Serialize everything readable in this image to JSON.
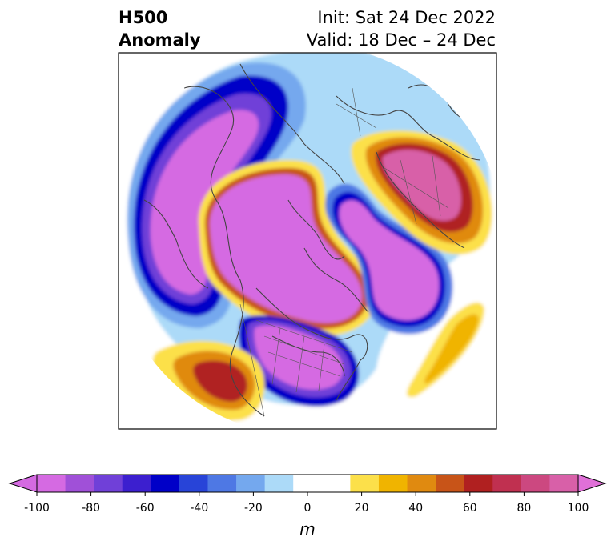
{
  "title": {
    "left_line1": "H500",
    "left_line2": "Anomaly",
    "right_line1": "Init: Sat 24 Dec 2022",
    "right_line2": "Valid: 18 Dec – 24 Dec"
  },
  "colorbar": {
    "unit_label": "m",
    "ticks": [
      "-100",
      "-80",
      "-60",
      "-40",
      "-20",
      "0",
      "20",
      "40",
      "60",
      "80",
      "100"
    ],
    "colors": [
      "#d56ae2",
      "#a050d8",
      "#7040d8",
      "#3c1fcf",
      "#0000c8",
      "#2844d8",
      "#4e78e4",
      "#74a8ee",
      "#acdaf8",
      "#ffffff",
      "#ffffff",
      "#fce04a",
      "#f0b400",
      "#e08a10",
      "#c85418",
      "#b02020",
      "#c03050",
      "#cc4880",
      "#d860a8"
    ],
    "under_color": "#d56ae2",
    "over_color": "#e070d8"
  },
  "map": {
    "projection": "north polar stereographic",
    "feature": "500 hPa geopotential height anomaly"
  }
}
